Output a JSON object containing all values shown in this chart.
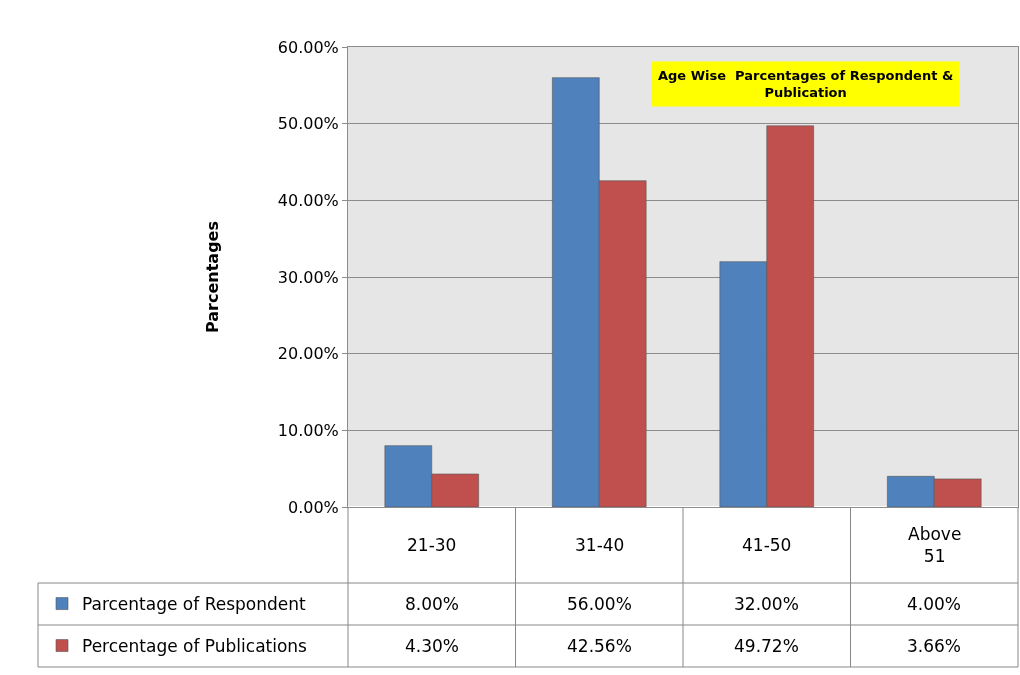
{
  "chart_data": {
    "type": "bar",
    "title": "Age Wise  Parcentages of Respondent & Publication",
    "ylabel": "Parcentages",
    "categories": [
      "21-30",
      "31-40",
      "41-50",
      "Above 51"
    ],
    "series": [
      {
        "name": "Parcentage of Respondent",
        "color": "#4f81bd",
        "values": [
          8,
          56,
          32,
          4
        ],
        "value_labels": [
          "8.00%",
          "56.00%",
          "32.00%",
          "4.00%"
        ]
      },
      {
        "name": "Percentage of Publications",
        "color": "#c0504d",
        "values": [
          4.3,
          42.56,
          49.72,
          3.66
        ],
        "value_labels": [
          "4.30%",
          "42.56%",
          "49.72%",
          "3.66%"
        ]
      }
    ],
    "ylim": [
      0,
      60
    ],
    "yticks": [
      {
        "value": 0,
        "label": "0.00%"
      },
      {
        "value": 10,
        "label": "10.00%"
      },
      {
        "value": 20,
        "label": "20.00%"
      },
      {
        "value": 30,
        "label": "30.00%"
      },
      {
        "value": 40,
        "label": "40.00%"
      },
      {
        "value": 50,
        "label": "50.00%"
      },
      {
        "value": 60,
        "label": "60.00%"
      }
    ],
    "grid": "y",
    "legend": "bottom left"
  }
}
